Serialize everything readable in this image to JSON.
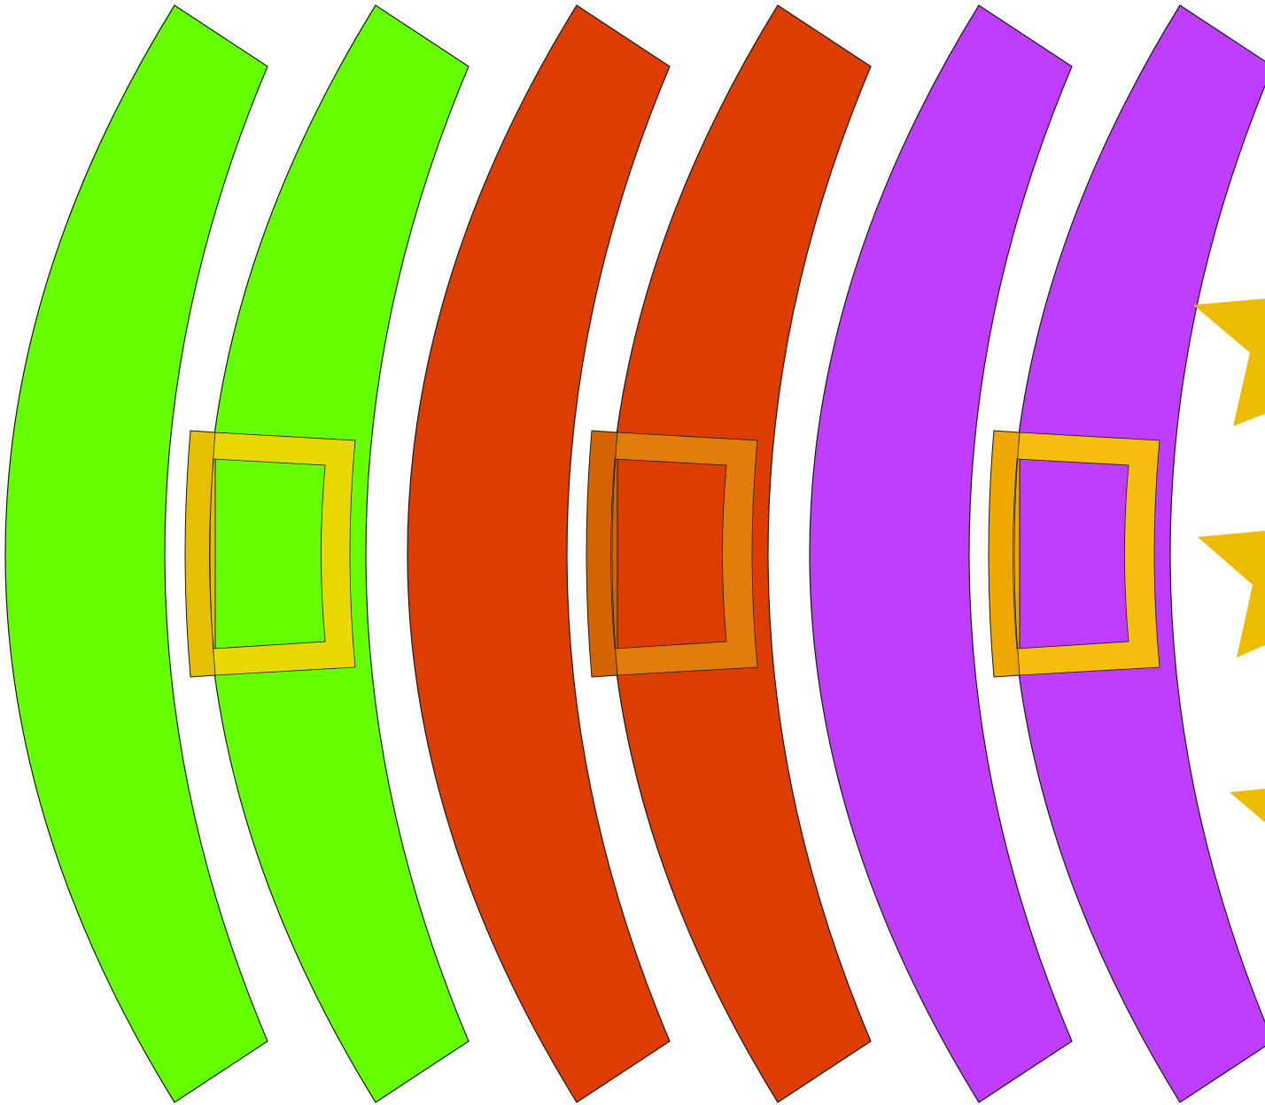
{
  "colors": {
    "background": "#ffffff",
    "outline": "#1a1a1a",
    "arc_sets": [
      "#66ff00",
      "#dd3d00",
      "#bf3dff"
    ],
    "buckles": [
      {
        "frame": "#e8d800",
        "edge": "#e6c000"
      },
      {
        "frame": "#e27d0c",
        "edge": "#d46400"
      },
      {
        "frame": "#f6bd10",
        "edge": "#eea800"
      }
    ],
    "stars": "#ecbc00"
  },
  "groups": [
    {
      "id": "green",
      "arcs": 2,
      "has_buckle": true
    },
    {
      "id": "orange",
      "arcs": 2,
      "has_buckle": true
    },
    {
      "id": "purple",
      "arcs": 2,
      "has_buckle": true
    }
  ],
  "decorations": {
    "stars": 3
  }
}
